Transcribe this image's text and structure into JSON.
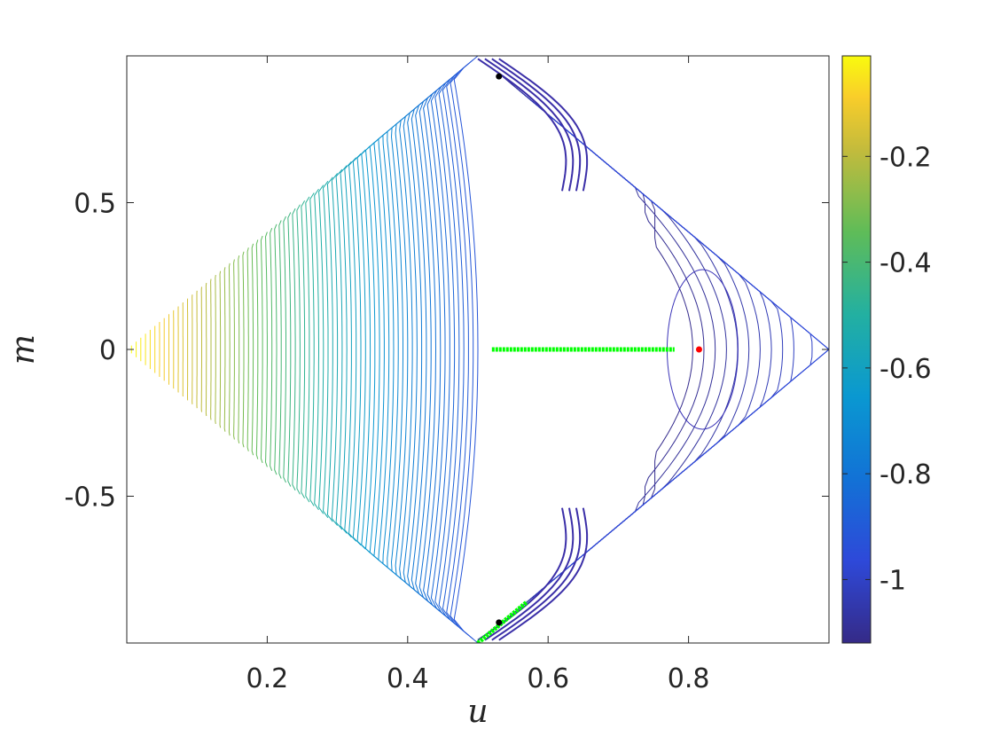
{
  "chart_data": {
    "type": "contour",
    "xlabel": "u",
    "ylabel": "m",
    "xlim": [
      0,
      1
    ],
    "ylim": [
      -1,
      1
    ],
    "x_ticks": [
      0.2,
      0.4,
      0.6,
      0.8
    ],
    "x_tick_labels": [
      "0.2",
      "0.4",
      "0.6",
      "0.8"
    ],
    "y_ticks": [
      -0.5,
      0,
      0.5
    ],
    "y_tick_labels": [
      "-0.5",
      "0",
      "0.5"
    ],
    "grid": false,
    "domain_vertices": [
      [
        0,
        0
      ],
      [
        0.5,
        1
      ],
      [
        1,
        0
      ],
      [
        0.5,
        -1
      ]
    ],
    "colorbar": {
      "colormap": "parula",
      "range": [
        -1.12,
        -0.01
      ],
      "ticks": [
        -1,
        -0.8,
        -0.6,
        -0.4,
        -0.2
      ],
      "tick_labels": [
        "-1",
        "-0.8",
        "-0.6",
        "-0.4",
        "-0.2"
      ]
    },
    "markers": [
      {
        "name": "black point",
        "u": 0.53,
        "m": 0.93,
        "color": "#000000"
      },
      {
        "name": "red point",
        "u": 0.815,
        "m": 0.0,
        "color": "#ff0000"
      },
      {
        "name": "black point lower",
        "u": 0.53,
        "m": -0.93,
        "color": "#000000"
      }
    ],
    "paths": [
      {
        "name": "green horizontal path",
        "color": "#00ff00",
        "points": [
          [
            0.52,
            0.0
          ],
          [
            0.78,
            0.0
          ]
        ]
      },
      {
        "name": "green lower path",
        "color": "#00ff00",
        "points": [
          [
            0.5,
            -1.0
          ],
          [
            0.53,
            -0.94
          ],
          [
            0.57,
            -0.86
          ]
        ]
      }
    ]
  }
}
